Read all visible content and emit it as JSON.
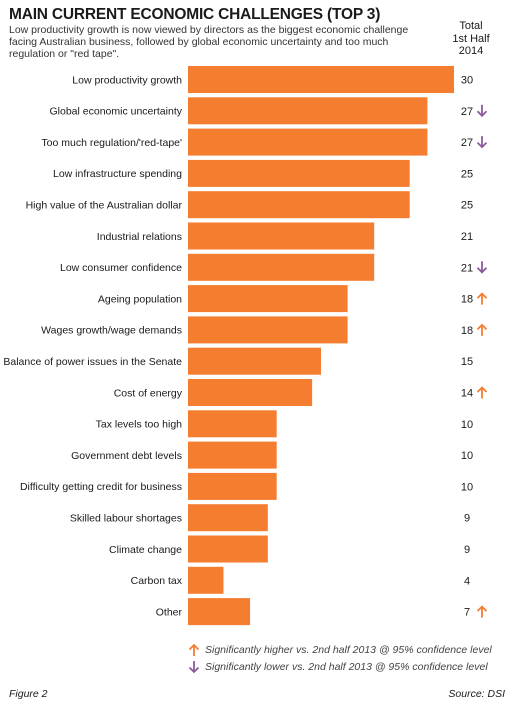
{
  "chart_data": {
    "type": "bar",
    "orientation": "horizontal",
    "title": "MAIN CURRENT ECONOMIC CHALLENGES (TOP 3)",
    "subtitle": "Low productivity growth is now viewed by directors as the biggest economic challenge facing Australian business, followed by global economic uncertainty and too much regulation or \"red tape\".",
    "column_header": [
      "Total",
      "1st Half",
      "2014"
    ],
    "categories": [
      "Low productivity growth",
      "Global economic uncertainty",
      "Too much regulation/'red-tape'",
      "Low infrastructure spending",
      "High value of the Australian dollar",
      "Industrial relations",
      "Low consumer confidence",
      "Ageing population",
      "Wages growth/wage demands",
      "Balance of power issues in the Senate",
      "Cost of energy",
      "Tax levels too high",
      "Government debt levels",
      "Difficulty getting credit for business",
      "Skilled labour shortages",
      "Climate change",
      "Carbon tax",
      "Other"
    ],
    "values": [
      30,
      27,
      27,
      25,
      25,
      21,
      21,
      18,
      18,
      15,
      14,
      10,
      10,
      10,
      9,
      9,
      4,
      7
    ],
    "significance": [
      "",
      "down",
      "down",
      "",
      "",
      "",
      "down",
      "up",
      "up",
      "",
      "up",
      "",
      "",
      "",
      "",
      "",
      "",
      "up"
    ],
    "xlim": [
      0,
      30
    ],
    "grid": false,
    "legend": [
      {
        "symbol": "up",
        "text": "Significantly higher vs. 2nd half 2013 @ 95% confidence level"
      },
      {
        "symbol": "down",
        "text": "Significantly lower vs. 2nd half 2013 @ 95% confidence level"
      }
    ]
  },
  "colors": {
    "bar": "#f47d30",
    "up_arrow": "#f47d30",
    "down_arrow": "#8e5a9e"
  },
  "footer": {
    "figure": "Figure 2",
    "source": "Source: DSI"
  }
}
